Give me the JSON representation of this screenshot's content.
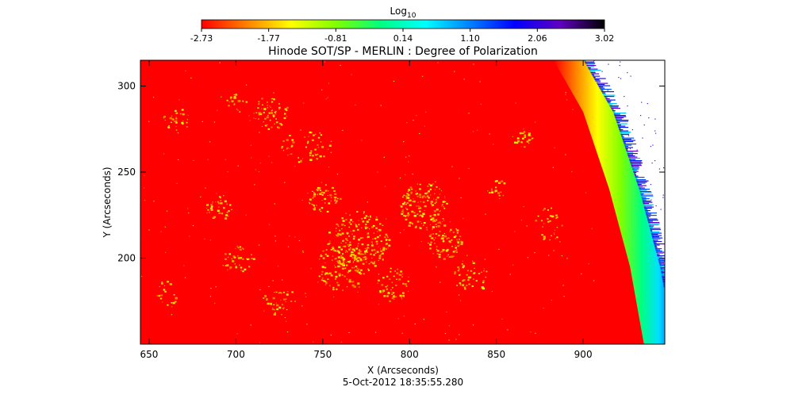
{
  "chart_data": {
    "type": "heatmap",
    "title": "Hinode SOT/SP - MERLIN : Degree of Polarization",
    "xlabel": "X (Arcseconds)",
    "ylabel": "Y (Arcseconds)",
    "footer": "5-Oct-2012 18:35:55.280",
    "xlim": [
      645,
      947
    ],
    "ylim": [
      150,
      315
    ],
    "xticks": [
      650,
      700,
      750,
      800,
      850,
      900
    ],
    "yticks": [
      200,
      250,
      300
    ],
    "colorbar": {
      "label_base": "Log",
      "label_sub": "10",
      "ticks": [
        "-2.73",
        "-1.77",
        "-0.81",
        "0.14",
        "1.10",
        "2.06",
        "3.02"
      ],
      "range": [
        -2.73,
        3.02
      ],
      "colors": [
        "#ff0000",
        "#ff8000",
        "#ffff00",
        "#80ff00",
        "#00ff80",
        "#00ffff",
        "#0080ff",
        "#0000ff",
        "#6000c0",
        "#000000"
      ]
    },
    "background_value": -2.73,
    "background_color": "#ff0000",
    "limb": {
      "description_points": [
        {
          "x": 883,
          "y": 315
        },
        {
          "x": 900,
          "y": 285
        },
        {
          "x": 915,
          "y": 240
        },
        {
          "x": 927,
          "y": 195
        },
        {
          "x": 935,
          "y": 150
        }
      ]
    }
  }
}
